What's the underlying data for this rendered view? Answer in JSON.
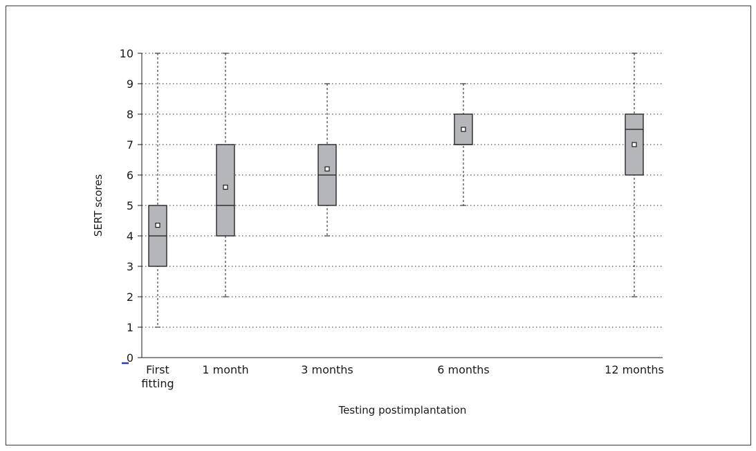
{
  "chart_data": {
    "type": "boxplot",
    "title": "",
    "xlabel": "Testing postimplantation",
    "ylabel": "SERT scores",
    "ylim": [
      0,
      10
    ],
    "yticks": [
      0,
      1,
      2,
      3,
      4,
      5,
      6,
      7,
      8,
      9,
      10
    ],
    "grid": "horizontal dotted",
    "categories": [
      [
        "First",
        "fitting"
      ],
      [
        "1 month"
      ],
      [
        "3 months"
      ],
      [
        "6 months"
      ],
      [
        "12 months"
      ]
    ],
    "boxes": [
      {
        "category": "First fitting",
        "min": 1,
        "q1": 3,
        "median": 4,
        "q3": 5,
        "max": 10,
        "mean": 4.35
      },
      {
        "category": "1 month",
        "min": 2,
        "q1": 4,
        "median": 5,
        "q3": 7,
        "max": 10,
        "mean": 5.6
      },
      {
        "category": "3 months",
        "min": 4,
        "q1": 5,
        "median": 6,
        "q3": 7,
        "max": 9,
        "mean": 6.2
      },
      {
        "category": "6 months",
        "min": 5,
        "q1": 7,
        "median": 7,
        "q3": 8,
        "max": 9,
        "mean": 7.5
      },
      {
        "category": "12 months",
        "min": 2,
        "q1": 6,
        "median": 7.5,
        "q3": 8,
        "max": 10,
        "mean": 7.0
      }
    ],
    "colors": {
      "box_fill": "#b5b6b9",
      "stroke": "#1a1a1a",
      "grid": "#555555",
      "zero_marker": "#1f3fbf"
    }
  }
}
